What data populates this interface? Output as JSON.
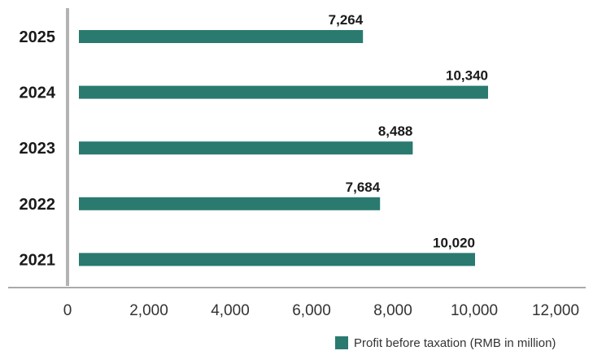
{
  "chart_data": {
    "type": "bar",
    "orientation": "horizontal",
    "categories": [
      "2025",
      "2024",
      "2023",
      "2022",
      "2021"
    ],
    "values": [
      7264,
      10340,
      8488,
      7684,
      10020
    ],
    "value_labels": [
      "7,264",
      "10,340",
      "8,488",
      "7,684",
      "10,020"
    ],
    "series": [
      {
        "name": "Profit before taxation (RMB in million)",
        "values": [
          7264,
          10340,
          8488,
          7684,
          10020
        ]
      }
    ],
    "xlim": [
      0,
      12000
    ],
    "x_ticks": [
      0,
      2000,
      4000,
      6000,
      8000,
      10000,
      12000
    ],
    "x_tick_labels": [
      "0",
      "2,000",
      "4,000",
      "6,000",
      "8,000",
      "10,000",
      "12,000"
    ],
    "grid": false,
    "legend": {
      "placement": "bottom-right",
      "label": "Profit before taxation (RMB in million)"
    },
    "colors": {
      "bar": "#2a7a70",
      "axis": "#b3b3b3",
      "baseline": "#555555"
    }
  }
}
